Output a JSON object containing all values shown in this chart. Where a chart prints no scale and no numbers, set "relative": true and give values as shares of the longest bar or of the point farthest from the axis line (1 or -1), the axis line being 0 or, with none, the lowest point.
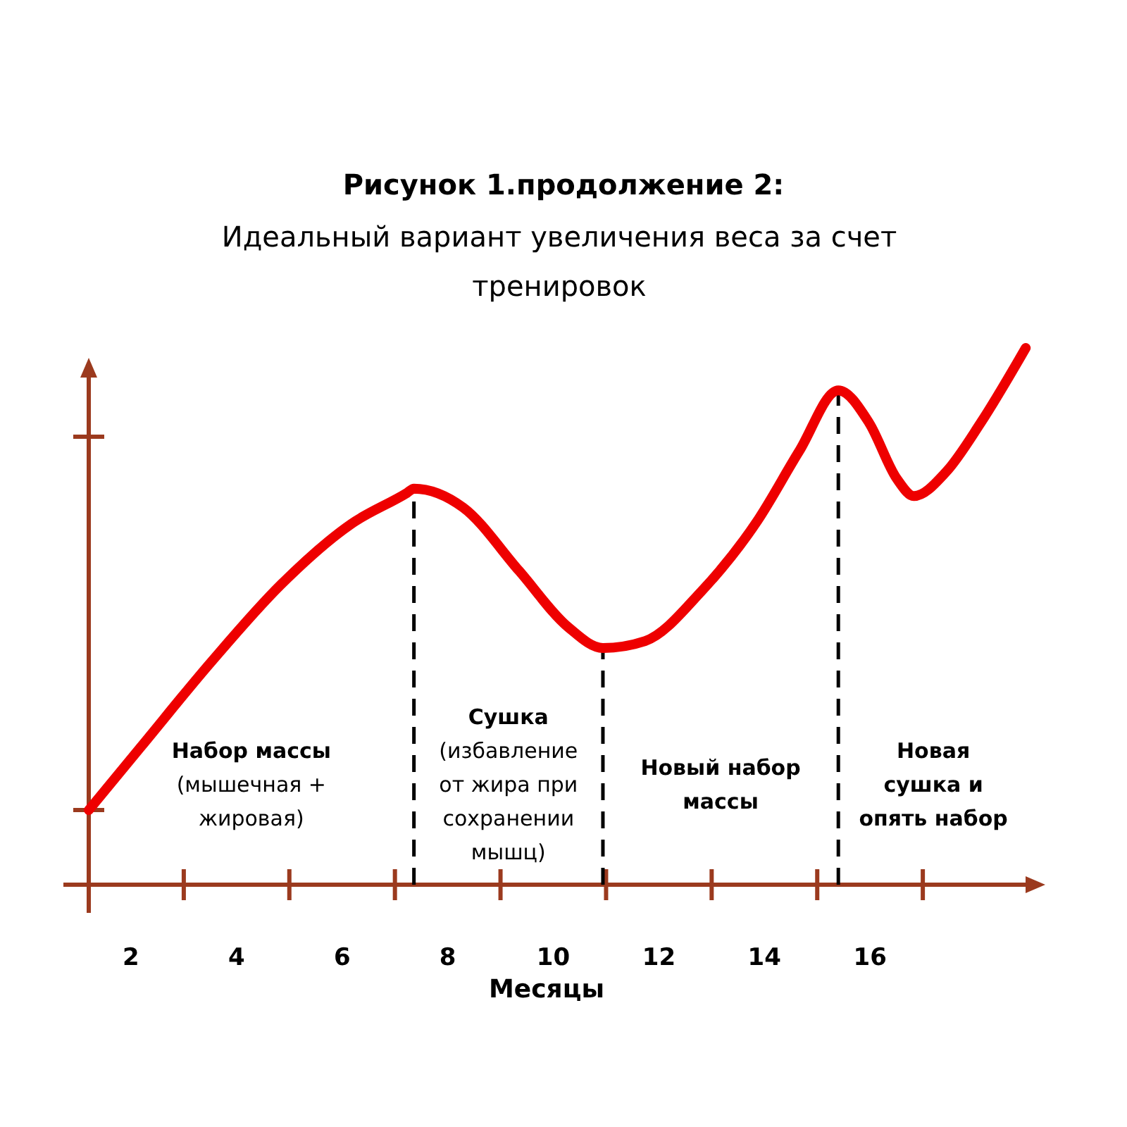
{
  "chart_data": {
    "type": "line",
    "title": "Рисунок 1.продолжение 2:",
    "subtitle": "Идеальный вариант увеличения веса за счет тренировок",
    "xlabel": "Месяцы",
    "relative": true,
    "x": [
      1.2,
      2.19,
      3.52,
      4.84,
      6.17,
      7.23,
      7.36,
      8.29,
      9.35,
      10.28,
      10.94,
      11.74,
      12.8,
      13.86,
      14.66,
      15.4,
      15.98,
      16.51,
      16.83,
      17.44,
      18.1,
      18.95
    ],
    "series": [
      {
        "color": "#ee0000",
        "values": [
          0.139,
          0.257,
          0.415,
          0.559,
          0.672,
          0.73,
          0.738,
          0.703,
          0.585,
          0.48,
          0.441,
          0.454,
          0.546,
          0.677,
          0.808,
          0.921,
          0.861,
          0.756,
          0.724,
          0.769,
          0.861,
          1.0
        ]
      }
    ],
    "xlim": [
      1.2,
      19
    ],
    "xticks": [
      2,
      4,
      6,
      8,
      10,
      12,
      14,
      16
    ],
    "ref_lines": [
      {
        "axis": "x",
        "value": 7.36,
        "color": "#000000",
        "line_style": "dashed"
      },
      {
        "axis": "x",
        "value": 10.94,
        "color": "#000000",
        "line_style": "dashed"
      },
      {
        "axis": "x",
        "value": 15.4,
        "color": "#000000",
        "line_style": "dashed"
      }
    ],
    "annotations": [
      "Набор массы\n(мышечная +\nжировая)",
      "Сушка\n(избавление\nот жира при\nсохранении\nмышц)",
      "Новый набор\nмассы",
      "Новая\nсушка и\nопять набор"
    ],
    "grid": false,
    "marker": "none",
    "line_style": "solid"
  }
}
